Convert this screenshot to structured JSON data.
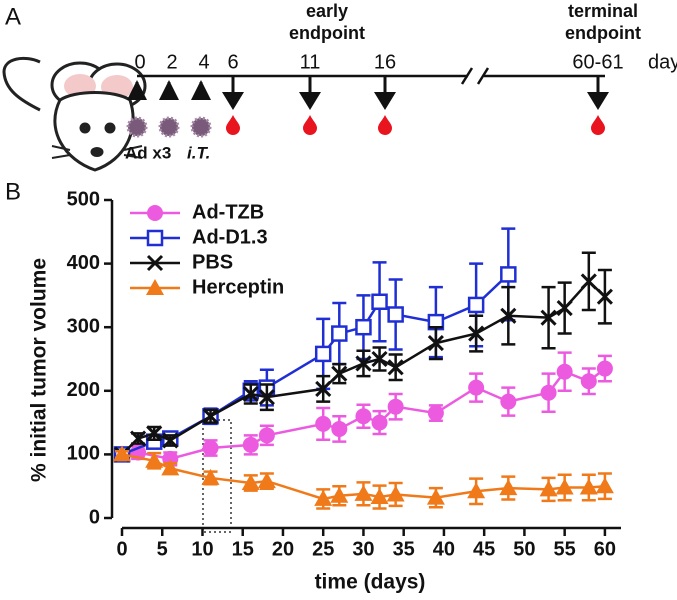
{
  "timeline": {
    "panel_label": "A",
    "days": [
      "0",
      "2",
      "4",
      "6",
      "11",
      "16",
      "60-61"
    ],
    "unit": "day",
    "early_label": [
      "early",
      "endpoint"
    ],
    "terminal_label": [
      "terminal",
      "endpoint"
    ],
    "injection_label": [
      "Ad x3",
      "i.T."
    ]
  },
  "chart_data": {
    "type": "line",
    "panel_label": "B",
    "x_label": "time (days)",
    "y_label": "% initial tumor volume",
    "xlim": [
      0,
      62
    ],
    "ylim": [
      0,
      500
    ],
    "xticks": [
      0,
      5,
      10,
      15,
      20,
      25,
      30,
      35,
      40,
      45,
      50,
      55,
      60
    ],
    "yticks": [
      0,
      100,
      200,
      300,
      400,
      500
    ],
    "legend": "upper left",
    "series": [
      {
        "name": "Ad-TZB",
        "color": "#ec5ae0",
        "marker": "circle",
        "x": [
          0,
          2,
          6,
          11,
          16,
          18,
          25,
          27,
          30,
          32,
          34,
          39,
          44,
          48,
          53,
          55,
          58,
          60
        ],
        "values": [
          100,
          103,
          93,
          110,
          115,
          130,
          148,
          140,
          160,
          150,
          175,
          165,
          205,
          183,
          197,
          230,
          215,
          235
        ],
        "errors": [
          8,
          10,
          10,
          12,
          15,
          15,
          25,
          20,
          18,
          18,
          20,
          12,
          22,
          22,
          30,
          30,
          20,
          20
        ]
      },
      {
        "name": "Ad-D1.3",
        "color": "#1f2fd4",
        "marker": "square",
        "x": [
          0,
          4,
          6,
          11,
          16,
          18,
          25,
          27,
          30,
          32,
          34,
          39,
          44,
          48
        ],
        "values": [
          100,
          120,
          125,
          160,
          200,
          205,
          258,
          290,
          300,
          340,
          320,
          308,
          335,
          383
        ],
        "errors": [
          5,
          10,
          8,
          12,
          15,
          28,
          55,
          48,
          50,
          62,
          55,
          55,
          65,
          72
        ]
      },
      {
        "name": "PBS",
        "color": "#111111",
        "marker": "x",
        "x": [
          0,
          2,
          4,
          6,
          11,
          16,
          18,
          25,
          27,
          30,
          32,
          34,
          39,
          44,
          48,
          53,
          55,
          58,
          60
        ],
        "values": [
          100,
          125,
          133,
          122,
          160,
          195,
          190,
          203,
          227,
          243,
          250,
          237,
          275,
          290,
          318,
          315,
          330,
          372,
          348
        ],
        "errors": [
          5,
          8,
          10,
          8,
          10,
          15,
          20,
          20,
          15,
          20,
          18,
          20,
          25,
          28,
          45,
          48,
          40,
          45,
          42
        ]
      },
      {
        "name": "Herceptin",
        "color": "#f07a1a",
        "marker": "triangle",
        "x": [
          0,
          4,
          6,
          11,
          16,
          18,
          25,
          27,
          30,
          32,
          34,
          39,
          44,
          48,
          53,
          55,
          58,
          60
        ],
        "values": [
          100,
          90,
          78,
          63,
          55,
          58,
          30,
          35,
          38,
          33,
          37,
          32,
          42,
          47,
          45,
          48,
          48,
          50
        ],
        "errors": [
          5,
          12,
          8,
          10,
          12,
          12,
          15,
          15,
          18,
          18,
          18,
          15,
          20,
          18,
          18,
          20,
          20,
          20
        ]
      }
    ]
  }
}
